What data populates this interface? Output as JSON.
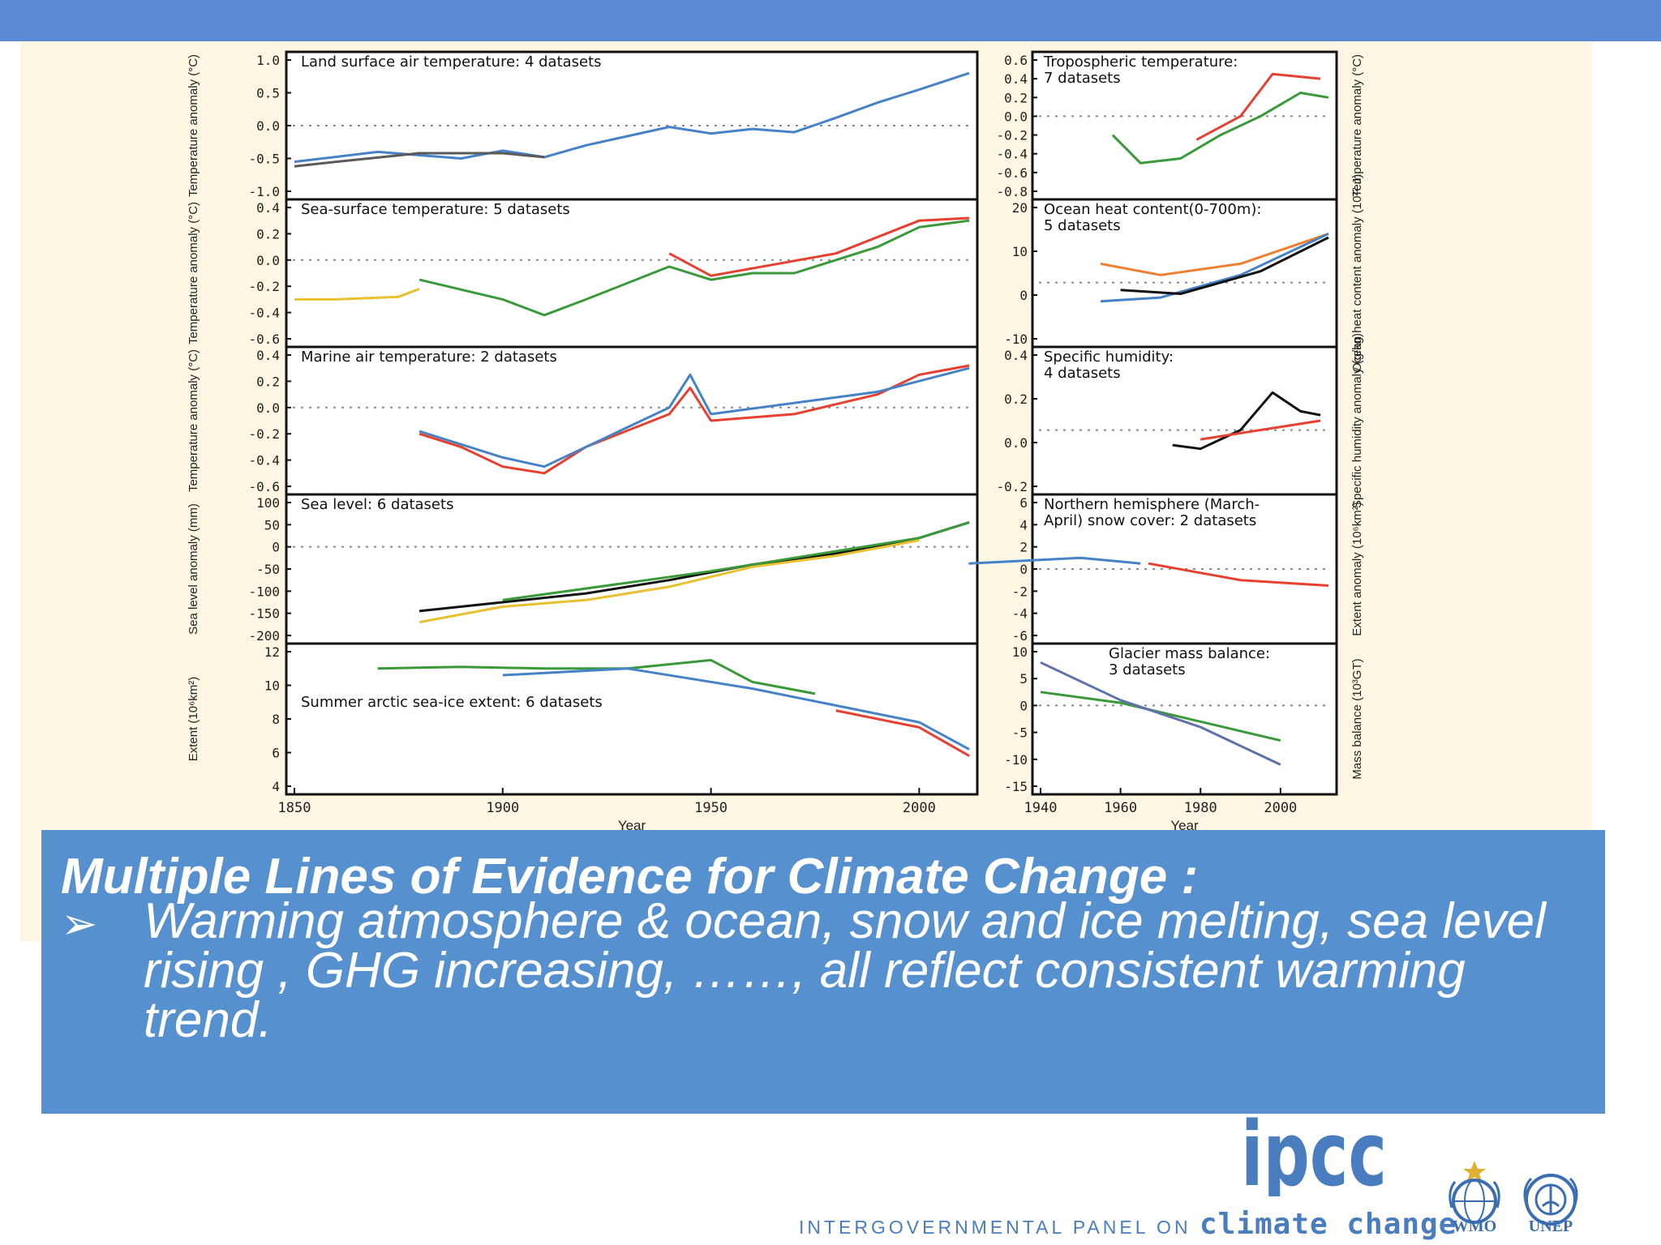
{
  "colors": {
    "top_bar": "#5b8ad6",
    "caption_bg": "#5690cf",
    "figure_bg": "#fdf6e3",
    "logo_blue": "#4a7dbf"
  },
  "chart_data": [
    {
      "type": "line",
      "title": "Land surface air temperature: 4 datasets",
      "ylabel": "Temperature anomaly (°C)",
      "yticks": [
        "1.0",
        "0.5",
        "0.0",
        "-0.5",
        "-1.0"
      ],
      "xlim": [
        1850,
        2012
      ],
      "ylim": [
        -1.0,
        1.0
      ],
      "series": [
        {
          "color": "#4682c8",
          "values": [
            [
              1850,
              -0.55
            ],
            [
              1870,
              -0.4
            ],
            [
              1890,
              -0.5
            ],
            [
              1900,
              -0.38
            ],
            [
              1910,
              -0.48
            ],
            [
              1920,
              -0.3
            ],
            [
              1940,
              -0.02
            ],
            [
              1950,
              -0.12
            ],
            [
              1960,
              -0.05
            ],
            [
              1970,
              -0.1
            ],
            [
              1980,
              0.12
            ],
            [
              1990,
              0.35
            ],
            [
              2000,
              0.55
            ],
            [
              2012,
              0.8
            ]
          ]
        },
        {
          "color": "#5a5a5a",
          "values": [
            [
              1850,
              -0.62
            ],
            [
              1860,
              -0.55
            ],
            [
              1880,
              -0.42
            ],
            [
              1900,
              -0.42
            ],
            [
              1910,
              -0.48
            ]
          ]
        }
      ]
    },
    {
      "type": "line",
      "title": "Sea-surface temperature: 5 datasets",
      "ylabel": "Temperature anomaly (°C)",
      "yticks": [
        "0.4",
        "0.2",
        "0.0",
        "-0.2",
        "-0.4",
        "-0.6"
      ],
      "xlim": [
        1850,
        2012
      ],
      "ylim": [
        -0.6,
        0.4
      ],
      "series": [
        {
          "color": "#e8c030",
          "values": [
            [
              1850,
              -0.3
            ],
            [
              1860,
              -0.3
            ],
            [
              1875,
              -0.28
            ],
            [
              1880,
              -0.22
            ]
          ]
        },
        {
          "color": "#3a9a3a",
          "values": [
            [
              1880,
              -0.15
            ],
            [
              1900,
              -0.3
            ],
            [
              1910,
              -0.42
            ],
            [
              1920,
              -0.3
            ],
            [
              1940,
              -0.05
            ],
            [
              1950,
              -0.15
            ],
            [
              1960,
              -0.1
            ],
            [
              1970,
              -0.1
            ],
            [
              1980,
              0.0
            ],
            [
              1990,
              0.1
            ],
            [
              2000,
              0.25
            ],
            [
              2012,
              0.3
            ]
          ]
        },
        {
          "color": "#e84030",
          "values": [
            [
              1940,
              0.05
            ],
            [
              1950,
              -0.12
            ],
            [
              1980,
              0.05
            ],
            [
              2000,
              0.3
            ],
            [
              2012,
              0.32
            ]
          ]
        }
      ]
    },
    {
      "type": "line",
      "title": "Marine air temperature: 2 datasets",
      "ylabel": "Temperature anomaly (°C)",
      "yticks": [
        "0.4",
        "0.2",
        "0.0",
        "-0.2",
        "-0.4",
        "-0.6"
      ],
      "xlim": [
        1850,
        2012
      ],
      "ylim": [
        -0.6,
        0.4
      ],
      "series": [
        {
          "color": "#e84030",
          "values": [
            [
              1880,
              -0.2
            ],
            [
              1890,
              -0.3
            ],
            [
              1900,
              -0.45
            ],
            [
              1910,
              -0.5
            ],
            [
              1920,
              -0.3
            ],
            [
              1940,
              -0.05
            ],
            [
              1945,
              0.15
            ],
            [
              1950,
              -0.1
            ],
            [
              1970,
              -0.05
            ],
            [
              1990,
              0.1
            ],
            [
              2000,
              0.25
            ],
            [
              2012,
              0.32
            ]
          ]
        },
        {
          "color": "#4682c8",
          "values": [
            [
              1880,
              -0.18
            ],
            [
              1900,
              -0.38
            ],
            [
              1910,
              -0.45
            ],
            [
              1940,
              0.0
            ],
            [
              1945,
              0.25
            ],
            [
              1950,
              -0.05
            ],
            [
              1990,
              0.12
            ],
            [
              2012,
              0.3
            ]
          ]
        }
      ]
    },
    {
      "type": "line",
      "title": "Sea level: 6 datasets",
      "ylabel": "Sea level anomaly (mm)",
      "yticks": [
        "100",
        "50",
        "0",
        "-50",
        "-100",
        "-150",
        "-200"
      ],
      "xlim": [
        1850,
        2012
      ],
      "ylim": [
        -200,
        100
      ],
      "series": [
        {
          "color": "#111111",
          "values": [
            [
              1880,
              -145
            ],
            [
              1900,
              -125
            ],
            [
              1920,
              -105
            ],
            [
              1940,
              -75
            ],
            [
              1960,
              -40
            ],
            [
              1980,
              -15
            ],
            [
              2000,
              20
            ],
            [
              2012,
              55
            ]
          ]
        },
        {
          "color": "#e8c030",
          "values": [
            [
              1880,
              -170
            ],
            [
              1900,
              -135
            ],
            [
              1920,
              -120
            ],
            [
              1940,
              -90
            ],
            [
              1960,
              -45
            ],
            [
              1980,
              -20
            ],
            [
              2000,
              15
            ]
          ]
        },
        {
          "color": "#3a9a3a",
          "values": [
            [
              1900,
              -120
            ],
            [
              1950,
              -55
            ],
            [
              2000,
              20
            ],
            [
              2012,
              55
            ]
          ]
        }
      ]
    },
    {
      "type": "line",
      "title": "Summer arctic sea-ice extent: 6 datasets",
      "ylabel": "Extent (10⁶km²)",
      "yticks": [
        "12",
        "10",
        "8",
        "6",
        "4"
      ],
      "xlabel": "Year",
      "xticks": [
        "1850",
        "1900",
        "1950",
        "2000"
      ],
      "xlim": [
        1850,
        2012
      ],
      "ylim": [
        4,
        12
      ],
      "series": [
        {
          "color": "#3a9a3a",
          "values": [
            [
              1870,
              11.0
            ],
            [
              1890,
              11.1
            ],
            [
              1910,
              11.0
            ],
            [
              1930,
              11.0
            ],
            [
              1950,
              11.5
            ],
            [
              1960,
              10.2
            ],
            [
              1975,
              9.5
            ]
          ]
        },
        {
          "color": "#4682c8",
          "values": [
            [
              1900,
              10.6
            ],
            [
              1930,
              11.0
            ],
            [
              1960,
              9.8
            ],
            [
              1980,
              8.8
            ],
            [
              2000,
              7.8
            ],
            [
              2012,
              6.2
            ]
          ]
        },
        {
          "color": "#e84030",
          "values": [
            [
              1980,
              8.5
            ],
            [
              2000,
              7.5
            ],
            [
              2012,
              5.8
            ]
          ]
        }
      ]
    },
    {
      "type": "line",
      "title": "Tropospheric temperature: 7 datasets",
      "ylabel": "Temperature anomaly (°C)",
      "yticks": [
        "0.6",
        "0.4",
        "0.2",
        "0.0",
        "-0.2",
        "-0.4",
        "-0.6",
        "-0.8"
      ],
      "xlim": [
        1940,
        2012
      ],
      "ylim": [
        -0.8,
        0.6
      ],
      "series": [
        {
          "color": "#3a9a3a",
          "values": [
            [
              1958,
              -0.2
            ],
            [
              1965,
              -0.5
            ],
            [
              1975,
              -0.45
            ],
            [
              1985,
              -0.2
            ],
            [
              1995,
              0.0
            ],
            [
              2005,
              0.25
            ],
            [
              2012,
              0.2
            ]
          ]
        },
        {
          "color": "#e84030",
          "values": [
            [
              1979,
              -0.25
            ],
            [
              1990,
              0.0
            ],
            [
              1998,
              0.45
            ],
            [
              2010,
              0.4
            ]
          ]
        }
      ]
    },
    {
      "type": "line",
      "title": "Ocean heat content(0-700m): 5 datasets",
      "ylabel": "Ocean heat content anomaly (10²² J)",
      "yticks": [
        "20",
        "10",
        "0",
        "-10"
      ],
      "xlim": [
        1940,
        2012
      ],
      "ylim": [
        -15,
        20
      ],
      "series": [
        {
          "color": "#f08030",
          "values": [
            [
              1955,
              5
            ],
            [
              1970,
              2
            ],
            [
              1990,
              5
            ],
            [
              2012,
              13
            ]
          ]
        },
        {
          "color": "#4682c8",
          "values": [
            [
              1955,
              -5
            ],
            [
              1970,
              -4
            ],
            [
              1990,
              2
            ],
            [
              2012,
              13
            ]
          ]
        },
        {
          "color": "#111111",
          "values": [
            [
              1960,
              -2
            ],
            [
              1975,
              -3
            ],
            [
              1995,
              3
            ],
            [
              2012,
              12
            ]
          ]
        }
      ]
    },
    {
      "type": "line",
      "title": "Specific humidity: 4 datasets",
      "ylabel": "Specific humidity anomaly (g/kg)",
      "yticks": [
        "0.4",
        "0.2",
        "0.0",
        "-0.2"
      ],
      "xlim": [
        1940,
        2012
      ],
      "ylim": [
        -0.3,
        0.4
      ],
      "series": [
        {
          "color": "#111111",
          "values": [
            [
              1973,
              -0.08
            ],
            [
              1980,
              -0.1
            ],
            [
              1990,
              0.0
            ],
            [
              1998,
              0.2
            ],
            [
              2005,
              0.1
            ],
            [
              2010,
              0.08
            ]
          ]
        },
        {
          "color": "#e84030",
          "values": [
            [
              1980,
              -0.05
            ],
            [
              2010,
              0.05
            ]
          ]
        }
      ]
    },
    {
      "type": "line",
      "title": "Northern hemisphere (March-April) snow cover: 2 datasets",
      "ylabel": "Extent anomaly (10⁶km²)",
      "yticks": [
        "6",
        "4",
        "2",
        "0",
        "-2",
        "-4",
        "-6"
      ],
      "xlim": [
        1940,
        2012
      ],
      "ylim": [
        -6,
        6
      ],
      "series": [
        {
          "color": "#4682c8",
          "values": [
            [
              1922,
              0.5
            ],
            [
              1950,
              1.0
            ],
            [
              1965,
              0.5
            ]
          ]
        },
        {
          "color": "#e84030",
          "values": [
            [
              1967,
              0.5
            ],
            [
              1990,
              -1.0
            ],
            [
              2012,
              -1.5
            ]
          ]
        }
      ]
    },
    {
      "type": "line",
      "title": "Glacier mass balance: 3 datasets",
      "ylabel": "Mass balance (10³GT)",
      "yticks": [
        "10",
        "5",
        "0",
        "-5",
        "-10",
        "-15"
      ],
      "xticks": [
        "1940",
        "1960",
        "1980",
        "2000"
      ],
      "xlabel": "Year",
      "xlim": [
        1940,
        2012
      ],
      "ylim": [
        -15,
        10
      ],
      "series": [
        {
          "color": "#3a9a3a",
          "values": [
            [
              1940,
              2.5
            ],
            [
              1960,
              0.5
            ],
            [
              1980,
              -3
            ],
            [
              2000,
              -6.5
            ]
          ]
        },
        {
          "color": "#6070a8",
          "values": [
            [
              1940,
              8
            ],
            [
              1960,
              1
            ],
            [
              1980,
              -4
            ],
            [
              2000,
              -11
            ]
          ]
        }
      ]
    }
  ],
  "caption": {
    "title": "Multiple Lines of Evidence for Climate Change :",
    "bullet_symbol": "➢",
    "body": "Warming atmosphere & ocean, snow and ice melting, sea level rising , GHG increasing, ……, all reflect consistent warming trend."
  },
  "logos": {
    "ipcc_mark": "ipcc",
    "org_prefix": "INTERGOVERNMENTAL PANEL ON ",
    "org_suffix": "climate change",
    "wmo": "WMO",
    "unep": "UNEP",
    "wmo_icon": "wmo-emblem-icon",
    "unep_icon": "unep-emblem-icon"
  }
}
